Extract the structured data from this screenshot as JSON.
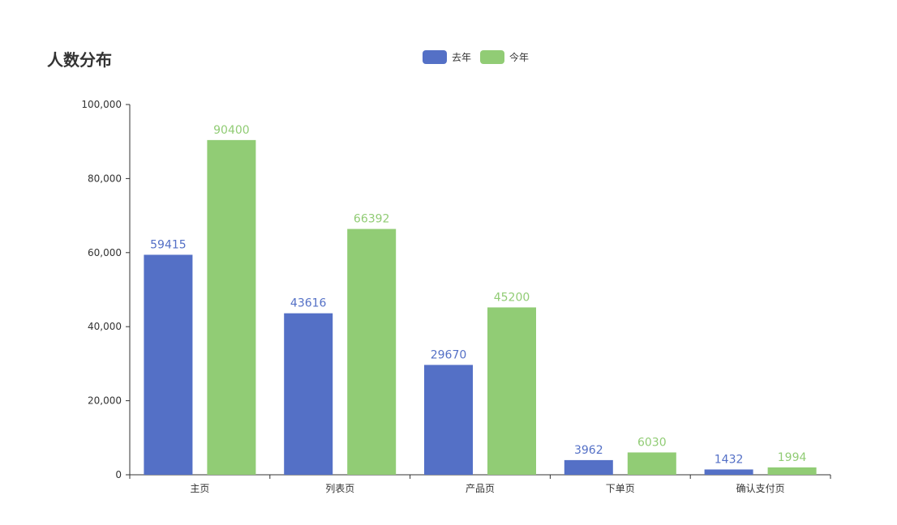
{
  "title": "人数分布",
  "legend": [
    {
      "name": "去年",
      "color": "#5470c6"
    },
    {
      "name": "今年",
      "color": "#91cc75"
    }
  ],
  "chart_data": {
    "type": "bar",
    "title": "人数分布",
    "categories": [
      "主页",
      "列表页",
      "产品页",
      "下单页",
      "确认支付页"
    ],
    "series": [
      {
        "name": "去年",
        "color": "#5470c6",
        "values": [
          59415,
          43616,
          29670,
          3962,
          1432
        ]
      },
      {
        "name": "今年",
        "color": "#91cc75",
        "values": [
          90400,
          66392,
          45200,
          6030,
          1994
        ]
      }
    ],
    "ylim": [
      0,
      100000
    ],
    "yticks": [
      "0",
      "20,000",
      "40,000",
      "60,000",
      "80,000",
      "100,000"
    ],
    "grid": false,
    "legend_position": "top-center",
    "data_labels": true
  }
}
